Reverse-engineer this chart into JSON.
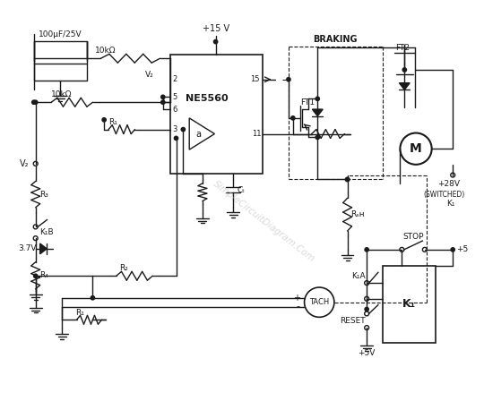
{
  "bg_color": "#ffffff",
  "line_color": "#1a1a1a",
  "figsize": [
    5.4,
    4.48
  ],
  "dpi": 100,
  "watermark": "SimpleCircuitDiagram.Com",
  "ic_label": "NE5560",
  "motor_label": "M",
  "tach_label": "TACH",
  "braking_label": "BRAKING",
  "ft1_label": "FT1",
  "ft2_label": "FT2",
  "k1_label": "K₁",
  "stop_label": "STOP",
  "reset_label": "RESET",
  "v_supply": "+15 V",
  "v_motor": "+28V",
  "v_pos5": "+5",
  "v_pos5v": "+5V",
  "cap_label": "100μF/25V",
  "r1_label": "10kΩ",
  "r2_label": "10kΩ",
  "v2_label": "V₂",
  "r3_label": "R₃",
  "k1b_label": "K₁B",
  "v_zener": "3.7V",
  "r4_label": "R₄",
  "ri_label": "R₁",
  "r2b_label": "R₂",
  "rsh_label": "Rₛʜ",
  "ct_label": "Cₜ",
  "switched_label": "(SWITCHED)",
  "k1_switch_label": "K₁",
  "k1a_label": "K₁A"
}
